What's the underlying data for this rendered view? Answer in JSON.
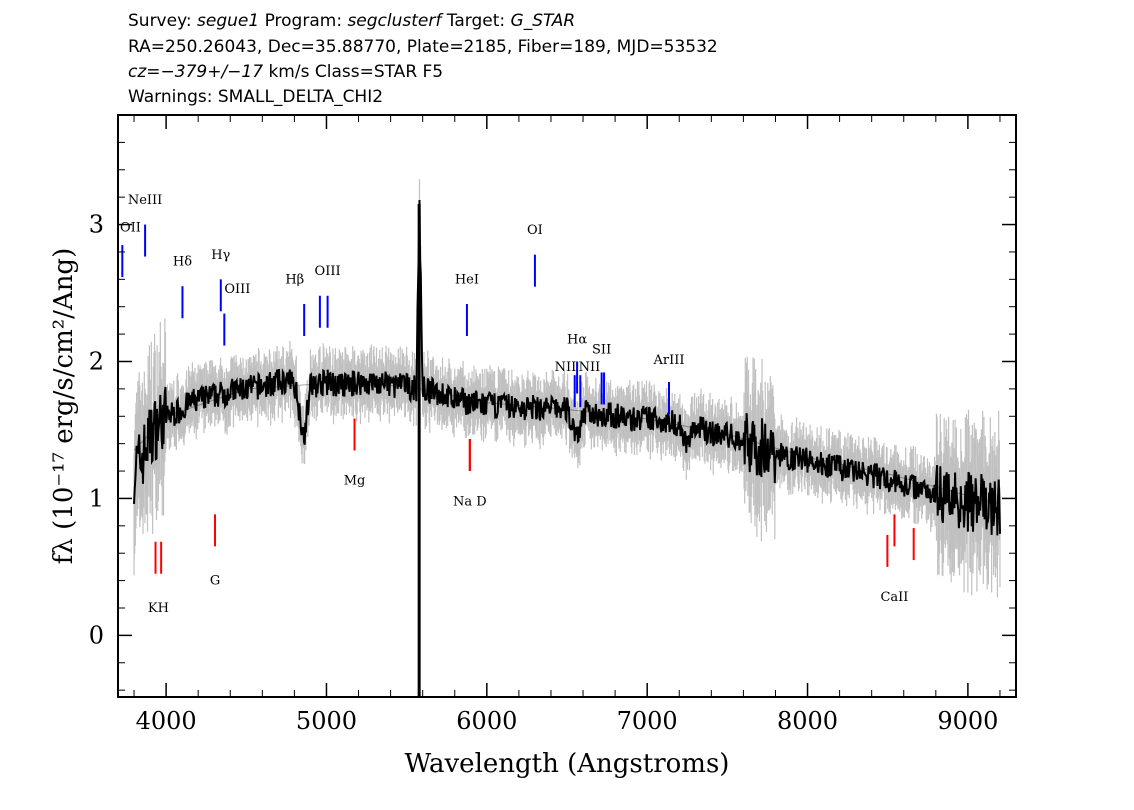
{
  "header": {
    "line1": {
      "survey_label": "Survey: ",
      "survey": "segue1",
      "program_label": " Program: ",
      "program": "segclusterf",
      "target_label": " Target: ",
      "target": "G_STAR"
    },
    "line2": "RA=250.26043, Dec=35.88770, Plate=2185, Fiber=189, MJD=53532",
    "line3": {
      "cz": "cz=−379+/−17",
      "rest": " km/s Class=STAR F5"
    },
    "line4": "Warnings: SMALL_DELTA_CHI2"
  },
  "chart_data": {
    "type": "line",
    "xlabel": "Wavelength (Angstroms)",
    "ylabel": "fλ (10⁻¹⁷ erg/s/cm²/Ang)",
    "xlim": [
      3700,
      9300
    ],
    "ylim": [
      -0.45,
      3.8
    ],
    "x_ticks": [
      4000,
      5000,
      6000,
      7000,
      8000,
      9000
    ],
    "y_ticks": [
      0,
      1,
      2,
      3
    ],
    "grid": false,
    "colors": {
      "flux": "#000000",
      "noise": "#c0c0c0",
      "emission": "#0000ff",
      "absorption": "#ff0000"
    },
    "series": [
      {
        "role": "flux",
        "x": [
          3800,
          3850,
          3900,
          3950,
          4000,
          4050,
          4100,
          4150,
          4200,
          4300,
          4400,
          4500,
          4600,
          4700,
          4800,
          4860,
          4900,
          5000,
          5100,
          5200,
          5300,
          5400,
          5500,
          5560,
          5580,
          5600,
          5700,
          5800,
          5900,
          6000,
          6100,
          6200,
          6300,
          6400,
          6500,
          6563,
          6600,
          6700,
          6800,
          6900,
          7000,
          7100,
          7200,
          7250,
          7300,
          7400,
          7500,
          7600,
          7700,
          7800,
          7900,
          8000,
          8100,
          8200,
          8300,
          8400,
          8500,
          8600,
          8700,
          8800,
          8900,
          9000,
          9100,
          9200
        ],
        "y": [
          1.2,
          1.3,
          1.45,
          1.55,
          1.6,
          1.62,
          1.65,
          1.7,
          1.72,
          1.75,
          1.78,
          1.8,
          1.82,
          1.85,
          1.85,
          1.45,
          1.82,
          1.85,
          1.82,
          1.85,
          1.84,
          1.83,
          1.82,
          1.8,
          3.1,
          1.8,
          1.77,
          1.72,
          1.7,
          1.68,
          1.68,
          1.66,
          1.66,
          1.66,
          1.65,
          1.45,
          1.62,
          1.62,
          1.6,
          1.58,
          1.58,
          1.57,
          1.54,
          1.4,
          1.52,
          1.48,
          1.46,
          1.42,
          1.38,
          1.32,
          1.3,
          1.28,
          1.25,
          1.22,
          1.2,
          1.17,
          1.14,
          1.1,
          1.08,
          1.05,
          1.02,
          0.98,
          0.95,
          0.93
        ]
      },
      {
        "role": "model",
        "x": [
          3800,
          4000,
          4500,
          5000,
          5500,
          6000,
          6500,
          7000,
          7500,
          8000,
          8500,
          9000,
          9200
        ],
        "y": [
          1.35,
          1.6,
          1.8,
          1.84,
          1.82,
          1.7,
          1.65,
          1.58,
          1.47,
          1.3,
          1.18,
          1.02,
          0.96
        ]
      }
    ],
    "emission_lines": [
      {
        "label": "OII",
        "wavelength": 3727,
        "y": 2.85
      },
      {
        "label": "NeIII",
        "wavelength": 3869,
        "y": 3.0
      },
      {
        "label": "Hδ",
        "wavelength": 4102,
        "y": 2.55
      },
      {
        "label": "Hγ",
        "wavelength": 4341,
        "y": 2.6
      },
      {
        "label": "OIII",
        "wavelength": 4363,
        "y": 2.35
      },
      {
        "label": "Hβ",
        "wavelength": 4861,
        "y": 2.42
      },
      {
        "label": "OIII",
        "wavelength": 4959,
        "y": 2.48
      },
      {
        "label": "OIII",
        "wavelength": 5007,
        "y": 2.48
      },
      {
        "label": "HeI",
        "wavelength": 5876,
        "y": 2.42
      },
      {
        "label": "OI",
        "wavelength": 6300,
        "y": 2.78
      },
      {
        "label": "NII",
        "wavelength": 6548,
        "y": 1.9
      },
      {
        "label": "Hα",
        "wavelength": 6563,
        "y": 2.0
      },
      {
        "label": "NII",
        "wavelength": 6583,
        "y": 1.9
      },
      {
        "label": "SII",
        "wavelength": 6716,
        "y": 1.92
      },
      {
        "label": "SII",
        "wavelength": 6731,
        "y": 1.92
      },
      {
        "label": "ArIII",
        "wavelength": 7136,
        "y": 1.85
      }
    ],
    "absorption_lines": [
      {
        "label": "K",
        "wavelength": 3934,
        "y": 0.45
      },
      {
        "label": "H",
        "wavelength": 3969,
        "y": 0.45
      },
      {
        "label": "G",
        "wavelength": 4305,
        "y": 0.65
      },
      {
        "label": "Mg",
        "wavelength": 5175,
        "y": 1.35
      },
      {
        "label": "Na",
        "wavelength": 5894,
        "y": 1.2
      },
      {
        "label": "D",
        "wavelength": 5894,
        "y": 1.2
      },
      {
        "label": "CaII",
        "wavelength": 8498,
        "y": 0.5
      },
      {
        "label": "CaII",
        "wavelength": 8542,
        "y": 0.65
      },
      {
        "label": "CaII",
        "wavelength": 8662,
        "y": 0.55
      }
    ],
    "line_label_texts": {
      "OII": "OII",
      "NeIII": "NeIII",
      "Hdelta": "Hδ",
      "Hgamma": "Hγ",
      "OIII_4363": "OIII",
      "Hbeta": "Hβ",
      "OIII_5007": "OIII",
      "HeI": "HeI",
      "OI": "OI",
      "NII_left": "NII",
      "Halpha": "Hα",
      "NII_right": "NII",
      "SII": "SII",
      "ArIII": "ArIII",
      "KH": "KH",
      "G": "G",
      "Mg": "Mg",
      "NaD": "Na  D",
      "CaII": "CaII"
    }
  }
}
